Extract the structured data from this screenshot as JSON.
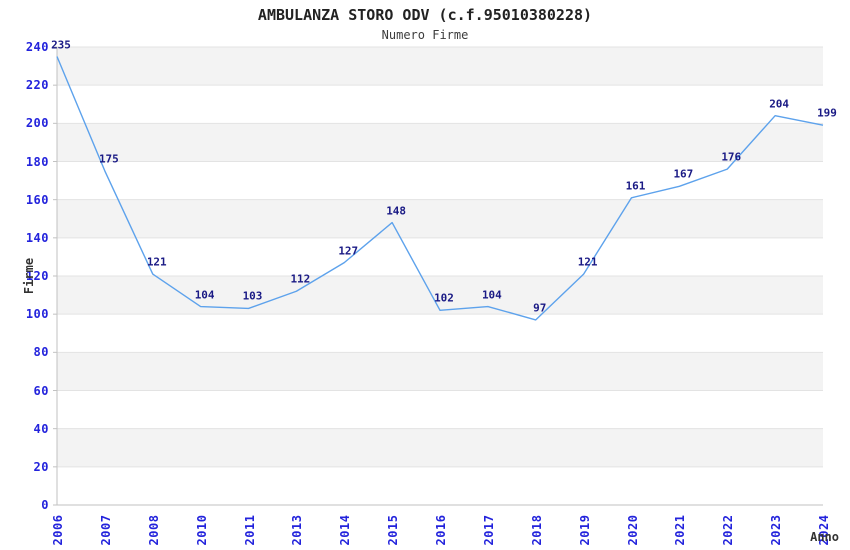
{
  "chart_data": {
    "type": "line",
    "title": "AMBULANZA STORO ODV (c.f.95010380228)",
    "subtitle": "Numero Firme",
    "xlabel": "Anno",
    "ylabel": "Firme",
    "categories": [
      "2006",
      "2007",
      "2008",
      "2010",
      "2011",
      "2013",
      "2014",
      "2015",
      "2016",
      "2017",
      "2018",
      "2019",
      "2020",
      "2021",
      "2022",
      "2023",
      "2024"
    ],
    "values": [
      235,
      175,
      121,
      104,
      103,
      112,
      127,
      148,
      102,
      104,
      97,
      121,
      161,
      167,
      176,
      204,
      199
    ],
    "ylim": [
      0,
      240
    ],
    "ytick_step": 20,
    "grid": true,
    "legend": "none",
    "band_fill": "alternating horizontal stripes, gray on top band",
    "colors": {
      "line": "#5da2ec",
      "tick_label": "#2323dc",
      "data_label": "#1a1a85",
      "band_gray": "#f3f3f3",
      "band_white": "#ffffff",
      "gridline": "#e3e3e3",
      "axis_line": "#c2c2c2",
      "title": "#222222",
      "subtitle": "#3c3c3c",
      "axis_title": "#333333"
    }
  }
}
